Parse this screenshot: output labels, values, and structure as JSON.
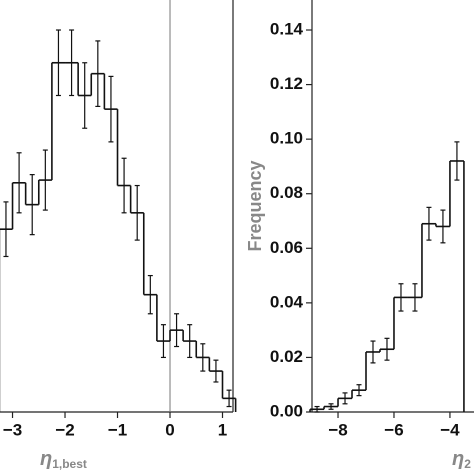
{
  "chart_data": [
    {
      "type": "histogram",
      "xlabel": "η",
      "xlabel_sub": "1,best",
      "bins": [
        -3.25,
        -3,
        -2.75,
        -2.5,
        -2.25,
        -2,
        -1.75,
        -1.5,
        -1.25,
        -1,
        -0.75,
        -0.5,
        -0.25,
        0,
        0.25,
        0.5,
        0.75,
        1,
        1.25
      ],
      "values": [
        0.067,
        0.084,
        0.076,
        0.085,
        0.128,
        0.128,
        0.116,
        0.124,
        0.111,
        0.083,
        0.073,
        0.043,
        0.026,
        0.03,
        0.026,
        0.02,
        0.015,
        0.005
      ],
      "errors": [
        0.01,
        0.011,
        0.011,
        0.011,
        0.012,
        0.012,
        0.012,
        0.012,
        0.012,
        0.01,
        0.01,
        0.007,
        0.006,
        0.006,
        0.006,
        0.005,
        0.004,
        0.003
      ],
      "color": "#111111",
      "xlim": [
        -3.25,
        1.2
      ],
      "ylim": [
        0,
        0.151
      ],
      "xticks": [
        {
          "value": -3,
          "label": "−3"
        },
        {
          "value": -2,
          "label": "−2"
        },
        {
          "value": -1,
          "label": "−1"
        },
        0,
        1
      ],
      "reference_line": 0
    },
    {
      "type": "histogram",
      "xlabel": "η",
      "xlabel_sub": "2",
      "ylabel": "Frequency",
      "bins": [
        -9,
        -8.5,
        -8,
        -7.5,
        -7,
        -6.5,
        -6,
        -5.5,
        -5,
        -4.5,
        -4,
        -3.5
      ],
      "values": [
        0.001,
        0.002,
        0.005,
        0.008,
        0.022,
        0.023,
        0.042,
        0.042,
        0.069,
        0.068,
        0.092
      ],
      "errors": [
        0.001,
        0.001,
        0.002,
        0.002,
        0.004,
        0.004,
        0.005,
        0.005,
        0.006,
        0.006,
        0.007
      ],
      "color": "#111111",
      "xlim": [
        -8.93,
        -3.14
      ],
      "ylim": [
        0,
        0.151
      ],
      "xticks": [
        {
          "value": -8,
          "label": "−8"
        },
        {
          "value": -6,
          "label": "−6"
        },
        {
          "value": -4,
          "label": "−4"
        }
      ],
      "yticks": [
        {
          "value": 0,
          "label": "0.00"
        },
        {
          "value": 0.02,
          "label": "0.02"
        },
        {
          "value": 0.04,
          "label": "0.04"
        },
        {
          "value": 0.06,
          "label": "0.06"
        },
        {
          "value": 0.08,
          "label": "0.08"
        },
        {
          "value": 0.1,
          "label": "0.10"
        },
        {
          "value": 0.12,
          "label": "0.12"
        },
        {
          "value": 0.14,
          "label": "0.14"
        }
      ]
    }
  ]
}
